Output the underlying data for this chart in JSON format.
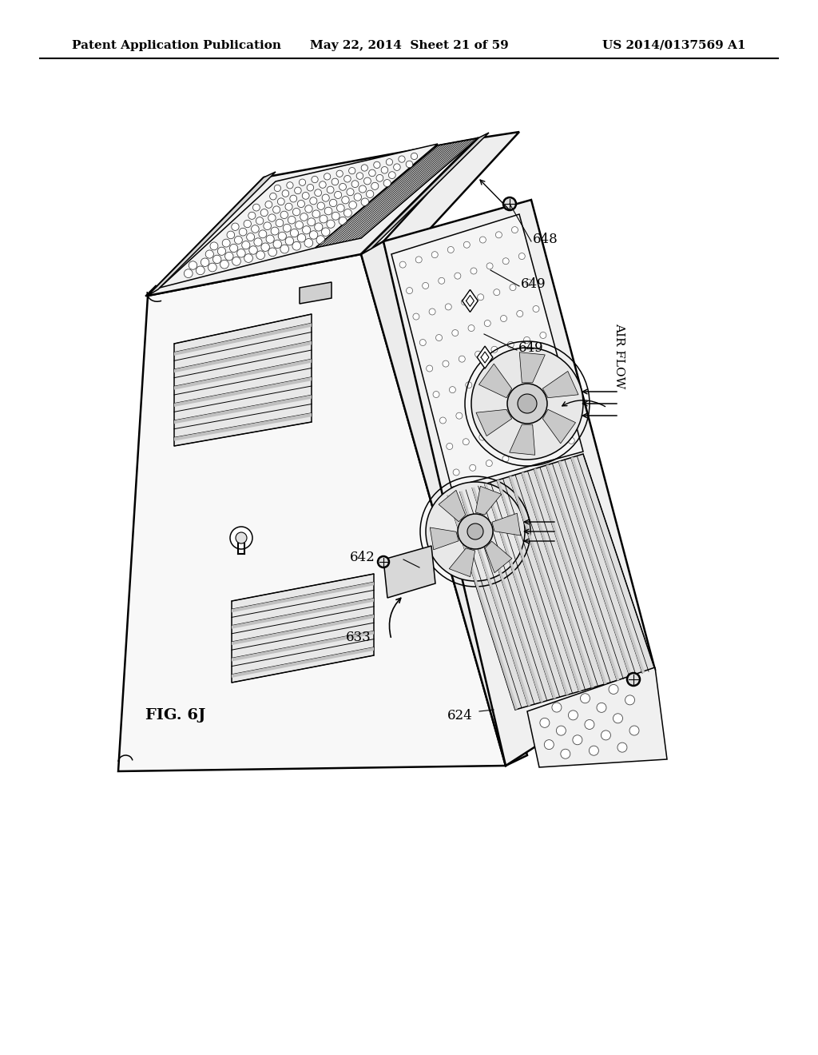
{
  "bg_color": "#ffffff",
  "header_left": "Patent Application Publication",
  "header_mid": "May 22, 2014  Sheet 21 of 59",
  "header_right": "US 2014/0137569 A1",
  "fig_label": "FIG. 6J",
  "header_fontsize": 11,
  "fig_label_fontsize": 14,
  "lw_main": 1.8,
  "lw_detail": 1.1,
  "lw_thin": 0.6
}
